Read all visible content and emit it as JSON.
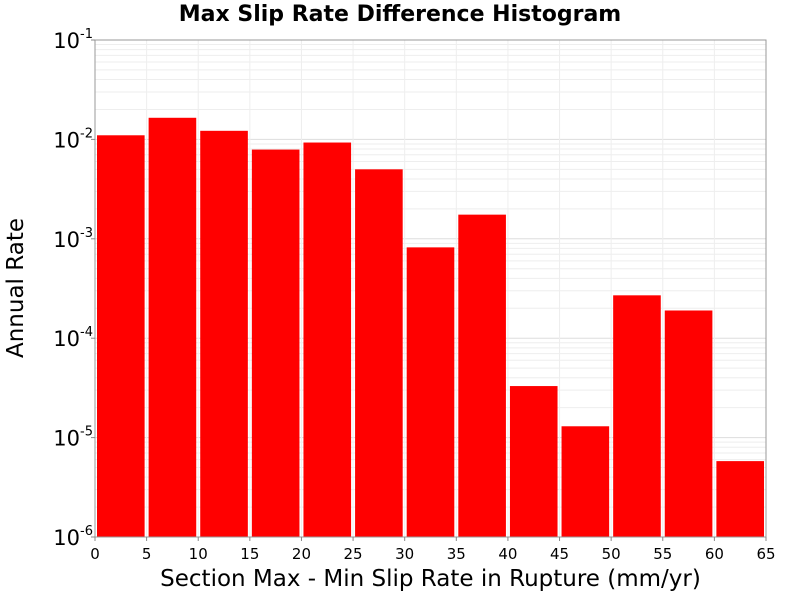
{
  "chart_data": {
    "type": "bar",
    "title": "Max Slip Rate Difference Histogram",
    "xlabel": "Section Max - Min Slip Rate in Rupture (mm/yr)",
    "ylabel": "Annual Rate",
    "y_scale": "log",
    "ylim": [
      1e-06,
      0.1
    ],
    "xlim": [
      0,
      65
    ],
    "grid": true,
    "legend": "none",
    "bar_color": "#ff0000",
    "x_ticks": [
      "0",
      "5",
      "10",
      "15",
      "20",
      "25",
      "30",
      "35",
      "40",
      "45",
      "50",
      "55",
      "60",
      "65"
    ],
    "y_ticks": [
      {
        "base": "10",
        "exp": "-6"
      },
      {
        "base": "10",
        "exp": "-5"
      },
      {
        "base": "10",
        "exp": "-4"
      },
      {
        "base": "10",
        "exp": "-3"
      },
      {
        "base": "10",
        "exp": "-2"
      },
      {
        "base": "10",
        "exp": "-1"
      }
    ],
    "bins": [
      {
        "x0": 0,
        "x1": 5,
        "value": 0.011
      },
      {
        "x0": 5,
        "x1": 10,
        "value": 0.0165
      },
      {
        "x0": 10,
        "x1": 15,
        "value": 0.0122
      },
      {
        "x0": 15,
        "x1": 20,
        "value": 0.0079
      },
      {
        "x0": 20,
        "x1": 25,
        "value": 0.0093
      },
      {
        "x0": 25,
        "x1": 30,
        "value": 0.005
      },
      {
        "x0": 30,
        "x1": 35,
        "value": 0.00082
      },
      {
        "x0": 35,
        "x1": 40,
        "value": 0.00175
      },
      {
        "x0": 40,
        "x1": 45,
        "value": 3.3e-05
      },
      {
        "x0": 45,
        "x1": 50,
        "value": 1.3e-05
      },
      {
        "x0": 50,
        "x1": 55,
        "value": 0.00027
      },
      {
        "x0": 55,
        "x1": 60,
        "value": 0.00019
      },
      {
        "x0": 60,
        "x1": 65,
        "value": 5.8e-06
      }
    ]
  }
}
